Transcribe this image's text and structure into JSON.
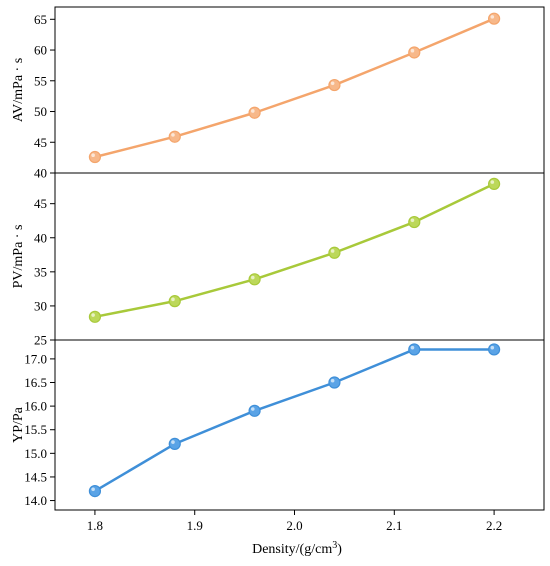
{
  "chart_data": [
    {
      "type": "line",
      "ylabel": "AV/mPa · s",
      "ylim": [
        40,
        67
      ],
      "yticks": [
        40,
        45,
        50,
        55,
        60,
        65
      ],
      "x": [
        1.8,
        1.88,
        1.96,
        2.04,
        2.12,
        2.2
      ],
      "values": [
        42.6,
        45.9,
        49.8,
        54.3,
        59.6,
        65.1
      ],
      "color": "#f4a56c",
      "marker_fill": "#f7b88a"
    },
    {
      "type": "line",
      "ylabel": "PV/mPa · s",
      "ylim": [
        25,
        49.5
      ],
      "yticks": [
        25,
        30,
        35,
        40,
        45
      ],
      "x": [
        1.8,
        1.88,
        1.96,
        2.04,
        2.12,
        2.2
      ],
      "values": [
        28.4,
        30.7,
        33.9,
        37.8,
        42.3,
        47.9
      ],
      "color": "#a8c93a",
      "marker_fill": "#bcd85a"
    },
    {
      "type": "line",
      "ylabel": "YP/Pa",
      "ylim": [
        13.8,
        17.4
      ],
      "yticks": [
        14.0,
        14.5,
        15.0,
        15.5,
        16.0,
        16.5,
        17.0
      ],
      "x": [
        1.8,
        1.88,
        1.96,
        2.04,
        2.12,
        2.2
      ],
      "values": [
        14.2,
        15.2,
        15.9,
        16.5,
        17.2,
        17.2
      ],
      "color": "#3f8fd8",
      "marker_fill": "#5aa3e6"
    }
  ],
  "xaxis": {
    "label_main": "Density/(g/cm",
    "label_sup": "3",
    "label_end": ")",
    "xlim": [
      1.76,
      2.25
    ],
    "ticks": [
      1.8,
      1.9,
      2.0,
      2.1,
      2.2
    ]
  }
}
